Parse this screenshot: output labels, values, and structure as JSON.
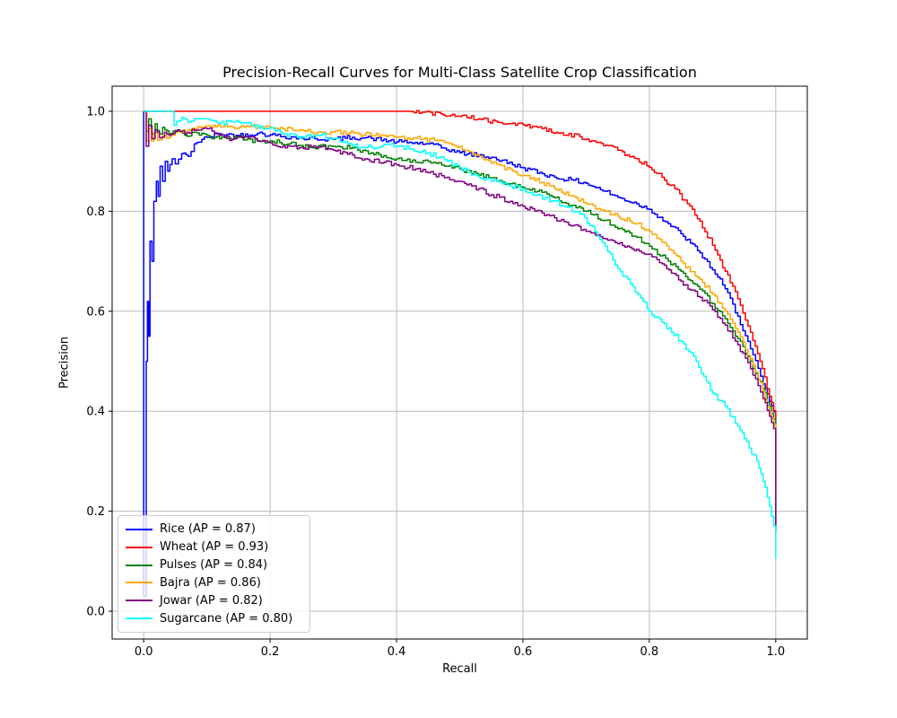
{
  "figure": {
    "background": "#ffffff"
  },
  "chart_data": {
    "type": "line",
    "title": "Precision-Recall Curves for Multi-Class Satellite Crop Classification",
    "xlabel": "Recall",
    "ylabel": "Precision",
    "xticks": [
      "0.0",
      "0.2",
      "0.4",
      "0.6",
      "0.8",
      "1.0"
    ],
    "yticks": [
      "0.0",
      "0.2",
      "0.4",
      "0.6",
      "0.8",
      "1.0"
    ],
    "xlim": [
      -0.05,
      1.05
    ],
    "ylim": [
      -0.06,
      1.05
    ],
    "grid": true,
    "grid_color": "#bcbcbc",
    "axis_color": "#000000",
    "legend_position": "lower left",
    "series": [
      {
        "name": "Rice",
        "ap": 0.87,
        "color": "#0000ff",
        "legend_label": "Rice (AP = 0.87)",
        "points": [
          [
            0,
            1
          ],
          [
            0,
            0.03
          ],
          [
            0.004,
            0.5
          ],
          [
            0.006,
            0.62
          ],
          [
            0.008,
            0.55
          ],
          [
            0.01,
            0.74
          ],
          [
            0.013,
            0.7
          ],
          [
            0.016,
            0.82
          ],
          [
            0.02,
            0.86
          ],
          [
            0.023,
            0.83
          ],
          [
            0.026,
            0.89
          ],
          [
            0.03,
            0.86
          ],
          [
            0.034,
            0.9
          ],
          [
            0.038,
            0.88
          ],
          [
            0.045,
            0.905
          ],
          [
            0.05,
            0.895
          ],
          [
            0.06,
            0.915
          ],
          [
            0.07,
            0.91
          ],
          [
            0.08,
            0.935
          ],
          [
            0.1,
            0.948
          ],
          [
            0.12,
            0.955
          ],
          [
            0.15,
            0.952
          ],
          [
            0.18,
            0.956
          ],
          [
            0.2,
            0.953
          ],
          [
            0.25,
            0.946
          ],
          [
            0.3,
            0.944
          ],
          [
            0.33,
            0.948
          ],
          [
            0.36,
            0.946
          ],
          [
            0.4,
            0.939
          ],
          [
            0.45,
            0.935
          ],
          [
            0.5,
            0.917
          ],
          [
            0.55,
            0.908
          ],
          [
            0.6,
            0.887
          ],
          [
            0.65,
            0.868
          ],
          [
            0.68,
            0.862
          ],
          [
            0.7,
            0.856
          ],
          [
            0.73,
            0.84
          ],
          [
            0.75,
            0.828
          ],
          [
            0.78,
            0.815
          ],
          [
            0.8,
            0.804
          ],
          [
            0.83,
            0.775
          ],
          [
            0.85,
            0.755
          ],
          [
            0.88,
            0.717
          ],
          [
            0.9,
            0.683
          ],
          [
            0.92,
            0.645
          ],
          [
            0.94,
            0.59
          ],
          [
            0.96,
            0.525
          ],
          [
            0.98,
            0.455
          ],
          [
            0.99,
            0.42
          ],
          [
            1,
            0.39
          ],
          [
            1,
            0.16
          ]
        ]
      },
      {
        "name": "Wheat",
        "ap": 0.93,
        "color": "#ff0000",
        "legend_label": "Wheat (AP = 0.93)",
        "points": [
          [
            0,
            1
          ],
          [
            0.42,
            1
          ],
          [
            0.44,
            0.998
          ],
          [
            0.47,
            0.995
          ],
          [
            0.5,
            0.99
          ],
          [
            0.53,
            0.985
          ],
          [
            0.56,
            0.978
          ],
          [
            0.6,
            0.973
          ],
          [
            0.63,
            0.965
          ],
          [
            0.66,
            0.957
          ],
          [
            0.69,
            0.949
          ],
          [
            0.72,
            0.938
          ],
          [
            0.75,
            0.922
          ],
          [
            0.78,
            0.905
          ],
          [
            0.8,
            0.888
          ],
          [
            0.82,
            0.868
          ],
          [
            0.84,
            0.845
          ],
          [
            0.86,
            0.815
          ],
          [
            0.88,
            0.78
          ],
          [
            0.9,
            0.732
          ],
          [
            0.92,
            0.68
          ],
          [
            0.94,
            0.625
          ],
          [
            0.96,
            0.558
          ],
          [
            0.975,
            0.5
          ],
          [
            0.99,
            0.43
          ],
          [
            1,
            0.385
          ],
          [
            1,
            0.16
          ]
        ]
      },
      {
        "name": "Pulses",
        "ap": 0.84,
        "color": "#008000",
        "legend_label": "Pulses (AP = 0.84)",
        "points": [
          [
            0,
            1
          ],
          [
            0.005,
            0.96
          ],
          [
            0.008,
            0.985
          ],
          [
            0.012,
            0.955
          ],
          [
            0.018,
            0.975
          ],
          [
            0.025,
            0.955
          ],
          [
            0.03,
            0.968
          ],
          [
            0.04,
            0.955
          ],
          [
            0.05,
            0.962
          ],
          [
            0.065,
            0.952
          ],
          [
            0.08,
            0.958
          ],
          [
            0.1,
            0.952
          ],
          [
            0.12,
            0.945
          ],
          [
            0.15,
            0.948
          ],
          [
            0.18,
            0.94
          ],
          [
            0.2,
            0.941
          ],
          [
            0.23,
            0.935
          ],
          [
            0.26,
            0.928
          ],
          [
            0.3,
            0.93
          ],
          [
            0.33,
            0.927
          ],
          [
            0.36,
            0.917
          ],
          [
            0.4,
            0.905
          ],
          [
            0.43,
            0.898
          ],
          [
            0.45,
            0.9
          ],
          [
            0.48,
            0.89
          ],
          [
            0.5,
            0.885
          ],
          [
            0.53,
            0.872
          ],
          [
            0.55,
            0.867
          ],
          [
            0.58,
            0.855
          ],
          [
            0.6,
            0.848
          ],
          [
            0.63,
            0.838
          ],
          [
            0.65,
            0.827
          ],
          [
            0.68,
            0.812
          ],
          [
            0.7,
            0.8
          ],
          [
            0.73,
            0.782
          ],
          [
            0.75,
            0.765
          ],
          [
            0.78,
            0.748
          ],
          [
            0.8,
            0.73
          ],
          [
            0.83,
            0.7
          ],
          [
            0.85,
            0.68
          ],
          [
            0.88,
            0.644
          ],
          [
            0.9,
            0.615
          ],
          [
            0.92,
            0.585
          ],
          [
            0.94,
            0.545
          ],
          [
            0.96,
            0.5
          ],
          [
            0.98,
            0.445
          ],
          [
            0.99,
            0.41
          ],
          [
            1,
            0.37
          ],
          [
            1,
            0.16
          ]
        ]
      },
      {
        "name": "Bajra",
        "ap": 0.86,
        "color": "#ffa500",
        "legend_label": "Bajra (AP = 0.86)",
        "points": [
          [
            0,
            1
          ],
          [
            0.005,
            0.94
          ],
          [
            0.008,
            0.965
          ],
          [
            0.012,
            0.94
          ],
          [
            0.016,
            0.958
          ],
          [
            0.022,
            0.942
          ],
          [
            0.03,
            0.952
          ],
          [
            0.04,
            0.948
          ],
          [
            0.05,
            0.958
          ],
          [
            0.07,
            0.963
          ],
          [
            0.09,
            0.968
          ],
          [
            0.11,
            0.972
          ],
          [
            0.14,
            0.968
          ],
          [
            0.17,
            0.97
          ],
          [
            0.2,
            0.968
          ],
          [
            0.24,
            0.962
          ],
          [
            0.28,
            0.958
          ],
          [
            0.3,
            0.959
          ],
          [
            0.34,
            0.955
          ],
          [
            0.38,
            0.952
          ],
          [
            0.4,
            0.948
          ],
          [
            0.43,
            0.946
          ],
          [
            0.46,
            0.942
          ],
          [
            0.48,
            0.937
          ],
          [
            0.5,
            0.93
          ],
          [
            0.52,
            0.915
          ],
          [
            0.55,
            0.896
          ],
          [
            0.58,
            0.884
          ],
          [
            0.6,
            0.872
          ],
          [
            0.63,
            0.858
          ],
          [
            0.65,
            0.845
          ],
          [
            0.68,
            0.83
          ],
          [
            0.7,
            0.815
          ],
          [
            0.73,
            0.8
          ],
          [
            0.75,
            0.79
          ],
          [
            0.78,
            0.775
          ],
          [
            0.8,
            0.76
          ],
          [
            0.82,
            0.738
          ],
          [
            0.85,
            0.7
          ],
          [
            0.88,
            0.664
          ],
          [
            0.9,
            0.634
          ],
          [
            0.92,
            0.6
          ],
          [
            0.94,
            0.558
          ],
          [
            0.96,
            0.505
          ],
          [
            0.98,
            0.44
          ],
          [
            0.99,
            0.4
          ],
          [
            1,
            0.36
          ],
          [
            1,
            0.16
          ]
        ]
      },
      {
        "name": "Jowar",
        "ap": 0.82,
        "color": "#800080",
        "legend_label": "Jowar (AP = 0.82)",
        "points": [
          [
            0,
            1
          ],
          [
            0.004,
            0.93
          ],
          [
            0.008,
            0.972
          ],
          [
            0.013,
            0.945
          ],
          [
            0.018,
            0.963
          ],
          [
            0.025,
            0.947
          ],
          [
            0.033,
            0.958
          ],
          [
            0.04,
            0.952
          ],
          [
            0.05,
            0.96
          ],
          [
            0.065,
            0.955
          ],
          [
            0.08,
            0.962
          ],
          [
            0.1,
            0.965
          ],
          [
            0.12,
            0.952
          ],
          [
            0.14,
            0.944
          ],
          [
            0.16,
            0.95
          ],
          [
            0.18,
            0.941
          ],
          [
            0.2,
            0.937
          ],
          [
            0.22,
            0.93
          ],
          [
            0.25,
            0.928
          ],
          [
            0.28,
            0.929
          ],
          [
            0.3,
            0.922
          ],
          [
            0.33,
            0.913
          ],
          [
            0.35,
            0.905
          ],
          [
            0.38,
            0.898
          ],
          [
            0.4,
            0.893
          ],
          [
            0.43,
            0.885
          ],
          [
            0.45,
            0.877
          ],
          [
            0.48,
            0.868
          ],
          [
            0.5,
            0.86
          ],
          [
            0.53,
            0.845
          ],
          [
            0.55,
            0.833
          ],
          [
            0.58,
            0.82
          ],
          [
            0.6,
            0.81
          ],
          [
            0.63,
            0.797
          ],
          [
            0.65,
            0.787
          ],
          [
            0.68,
            0.772
          ],
          [
            0.7,
            0.76
          ],
          [
            0.73,
            0.745
          ],
          [
            0.75,
            0.735
          ],
          [
            0.78,
            0.724
          ],
          [
            0.8,
            0.714
          ],
          [
            0.82,
            0.695
          ],
          [
            0.85,
            0.66
          ],
          [
            0.88,
            0.628
          ],
          [
            0.9,
            0.603
          ],
          [
            0.92,
            0.572
          ],
          [
            0.94,
            0.533
          ],
          [
            0.96,
            0.485
          ],
          [
            0.98,
            0.425
          ],
          [
            0.99,
            0.39
          ],
          [
            1,
            0.35
          ],
          [
            1,
            0.16
          ]
        ]
      },
      {
        "name": "Sugarcane",
        "ap": 0.8,
        "color": "#00ffff",
        "legend_label": "Sugarcane (AP = 0.80)",
        "points": [
          [
            0,
            1
          ],
          [
            0.045,
            1
          ],
          [
            0.048,
            0.972
          ],
          [
            0.06,
            0.988
          ],
          [
            0.07,
            0.978
          ],
          [
            0.08,
            0.985
          ],
          [
            0.1,
            0.985
          ],
          [
            0.12,
            0.976
          ],
          [
            0.15,
            0.978
          ],
          [
            0.17,
            0.972
          ],
          [
            0.2,
            0.967
          ],
          [
            0.22,
            0.955
          ],
          [
            0.25,
            0.949
          ],
          [
            0.28,
            0.953
          ],
          [
            0.3,
            0.945
          ],
          [
            0.33,
            0.93
          ],
          [
            0.36,
            0.928
          ],
          [
            0.38,
            0.934
          ],
          [
            0.4,
            0.93
          ],
          [
            0.42,
            0.925
          ],
          [
            0.45,
            0.917
          ],
          [
            0.48,
            0.9
          ],
          [
            0.5,
            0.887
          ],
          [
            0.53,
            0.868
          ],
          [
            0.55,
            0.86
          ],
          [
            0.58,
            0.85
          ],
          [
            0.6,
            0.845
          ],
          [
            0.62,
            0.832
          ],
          [
            0.65,
            0.82
          ],
          [
            0.67,
            0.808
          ],
          [
            0.69,
            0.795
          ],
          [
            0.71,
            0.77
          ],
          [
            0.73,
            0.73
          ],
          [
            0.75,
            0.685
          ],
          [
            0.77,
            0.655
          ],
          [
            0.79,
            0.62
          ],
          [
            0.8,
            0.6
          ],
          [
            0.82,
            0.578
          ],
          [
            0.85,
            0.54
          ],
          [
            0.87,
            0.51
          ],
          [
            0.89,
            0.46
          ],
          [
            0.9,
            0.436
          ],
          [
            0.92,
            0.41
          ],
          [
            0.94,
            0.37
          ],
          [
            0.95,
            0.345
          ],
          [
            0.97,
            0.3
          ],
          [
            0.98,
            0.26
          ],
          [
            0.99,
            0.21
          ],
          [
            1,
            0.155
          ],
          [
            1,
            0.105
          ]
        ]
      }
    ]
  }
}
